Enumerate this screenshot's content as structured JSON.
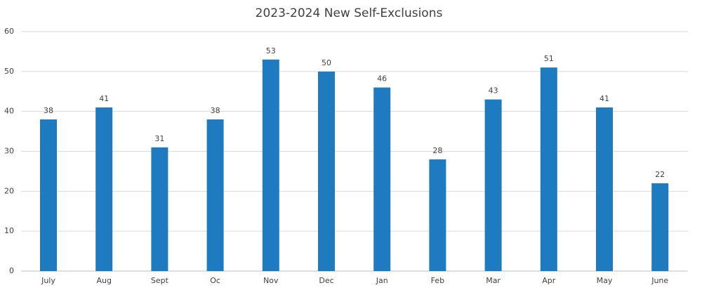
{
  "chart_data": {
    "type": "bar",
    "title": "2023-2024 New Self-Exclusions",
    "categories": [
      "July",
      "Aug",
      "Sept",
      "Oc",
      "Nov",
      "Dec",
      "Jan",
      "Feb",
      "Mar",
      "Apr",
      "May",
      "June"
    ],
    "values": [
      38,
      41,
      31,
      38,
      53,
      50,
      46,
      28,
      43,
      51,
      41,
      22
    ],
    "color": "#1f7bbf",
    "ylim": [
      0,
      60
    ],
    "yticks": [
      0,
      10,
      20,
      30,
      40,
      50,
      60
    ],
    "grid": true
  }
}
